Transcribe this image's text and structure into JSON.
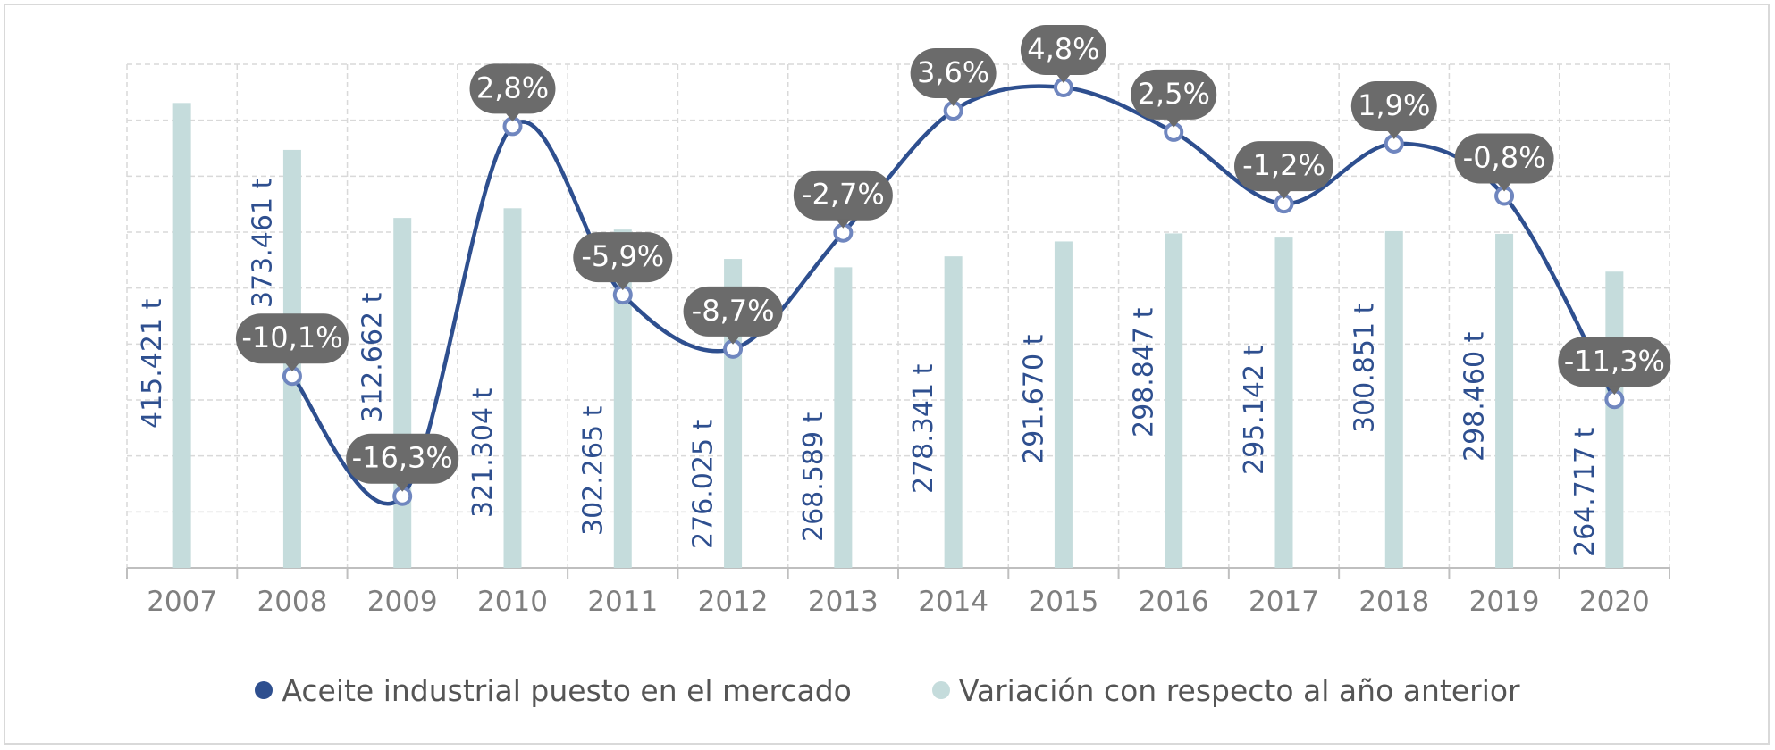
{
  "chart_data": {
    "type": "bar+line",
    "categories": [
      "2007",
      "2008",
      "2009",
      "2010",
      "2011",
      "2012",
      "2013",
      "2014",
      "2015",
      "2016",
      "2017",
      "2018",
      "2019",
      "2020"
    ],
    "bar_series": {
      "name": "Variación con respecto al año anterior",
      "values": [
        415421,
        373461,
        312662,
        321304,
        302265,
        276025,
        268589,
        278341,
        291670,
        298847,
        295142,
        300851,
        298460,
        264717
      ],
      "labels": [
        "415.421 t",
        "373.461 t",
        "312.662 t",
        "321.304 t",
        "302.265 t",
        "276.025 t",
        "268.589 t",
        "278.341 t",
        "291.670 t",
        "298.847 t",
        "295.142 t",
        "300.851 t",
        "298.460 t",
        "264.717 t"
      ],
      "ylim": [
        0,
        450000
      ]
    },
    "line_series": {
      "name": "Aceite industrial puesto en el mercado",
      "points": [
        {
          "year": "2008",
          "value": -10.1,
          "label": "-10,1%"
        },
        {
          "year": "2009",
          "value": -16.3,
          "label": "-16,3%"
        },
        {
          "year": "2010",
          "value": 2.8,
          "label": "2,8%"
        },
        {
          "year": "2011",
          "value": -5.9,
          "label": "-5,9%"
        },
        {
          "year": "2012",
          "value": -8.7,
          "label": "-8,7%"
        },
        {
          "year": "2013",
          "value": -2.7,
          "label": "-2,7%"
        },
        {
          "year": "2014",
          "value": 3.6,
          "label": "3,6%"
        },
        {
          "year": "2015",
          "value": 4.8,
          "label": "4,8%"
        },
        {
          "year": "2016",
          "value": 2.5,
          "label": "2,5%"
        },
        {
          "year": "2017",
          "value": -1.2,
          "label": "-1,2%"
        },
        {
          "year": "2018",
          "value": 1.9,
          "label": "1,9%"
        },
        {
          "year": "2019",
          "value": -0.8,
          "label": "-0,8%"
        },
        {
          "year": "2020",
          "value": -11.3,
          "label": "-11,3%"
        }
      ],
      "ylim": [
        -20,
        6
      ]
    },
    "grid": true,
    "legend_position": "bottom",
    "colors": {
      "bar": "#c5dcdc",
      "line": "#2e4f8f",
      "bar_label": "#2e4f8f",
      "callout_bg": "#6b6b6b",
      "callout_text": "#ffffff",
      "axis_text": "#7f7f7f",
      "grid": "#d9d9d9"
    }
  },
  "legend": {
    "items": [
      {
        "label": "Aceite industrial puesto en el mercado",
        "color": "#2e4f8f"
      },
      {
        "label": "Variación con respecto al año anterior",
        "color": "#c5dcdc"
      }
    ]
  }
}
